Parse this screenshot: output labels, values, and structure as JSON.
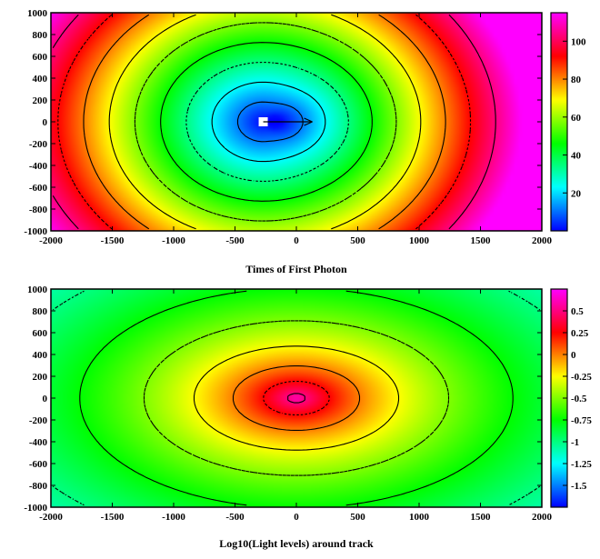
{
  "chart_data": [
    {
      "type": "heatmap",
      "title": "Times of First Photon",
      "xlabel": "",
      "ylabel": "",
      "xlim": [
        -2000,
        2000
      ],
      "ylim": [
        -1000,
        1000
      ],
      "x_ticks": [
        "-2000",
        "-1500",
        "-1000",
        "-500",
        "0",
        "500",
        "1000",
        "1500",
        "2000"
      ],
      "y_ticks": [
        "1000",
        "800",
        "600",
        "400",
        "200",
        "0",
        "-200",
        "-400",
        "-600",
        "-800",
        "-1000"
      ],
      "colorbar": {
        "range": [
          0,
          115
        ],
        "ticks": [
          20,
          40,
          60,
          80,
          100
        ],
        "tick_labels": [
          "20",
          "40",
          "60",
          "80",
          "100"
        ]
      },
      "source_marker": {
        "x": -270,
        "y": 0
      },
      "arrow": {
        "from": [
          -270,
          0
        ],
        "to": [
          130,
          0
        ]
      },
      "grid": false,
      "colormap": [
        "#0000ff",
        "#00ffff",
        "#00ff00",
        "#ffff00",
        "#ff0000",
        "#ff00ff"
      ]
    },
    {
      "type": "heatmap",
      "title": "Log10(Light levels) around track",
      "xlabel": "",
      "ylabel": "",
      "xlim": [
        -2000,
        2000
      ],
      "ylim": [
        -1000,
        1000
      ],
      "x_ticks": [
        "-2000",
        "-1500",
        "-1000",
        "-500",
        "0",
        "500",
        "1000",
        "1500",
        "2000"
      ],
      "y_ticks": [
        "1000",
        "800",
        "600",
        "400",
        "200",
        "0",
        "-200",
        "-400",
        "-600",
        "-800",
        "-1000"
      ],
      "colorbar": {
        "range": [
          -1.75,
          0.75
        ],
        "ticks": [
          0.5,
          0.25,
          0,
          -0.25,
          -0.5,
          -0.75,
          -1,
          -1.25,
          -1.5
        ],
        "tick_labels": [
          "0.5",
          "0.25",
          "0",
          "-0.25",
          "-0.5",
          "-0.75",
          "-1",
          "-1.25",
          "-1.5"
        ]
      },
      "grid": false,
      "colormap": [
        "#0000ff",
        "#00ffff",
        "#00ff00",
        "#ffff00",
        "#ff0000",
        "#ff00ff"
      ]
    }
  ]
}
